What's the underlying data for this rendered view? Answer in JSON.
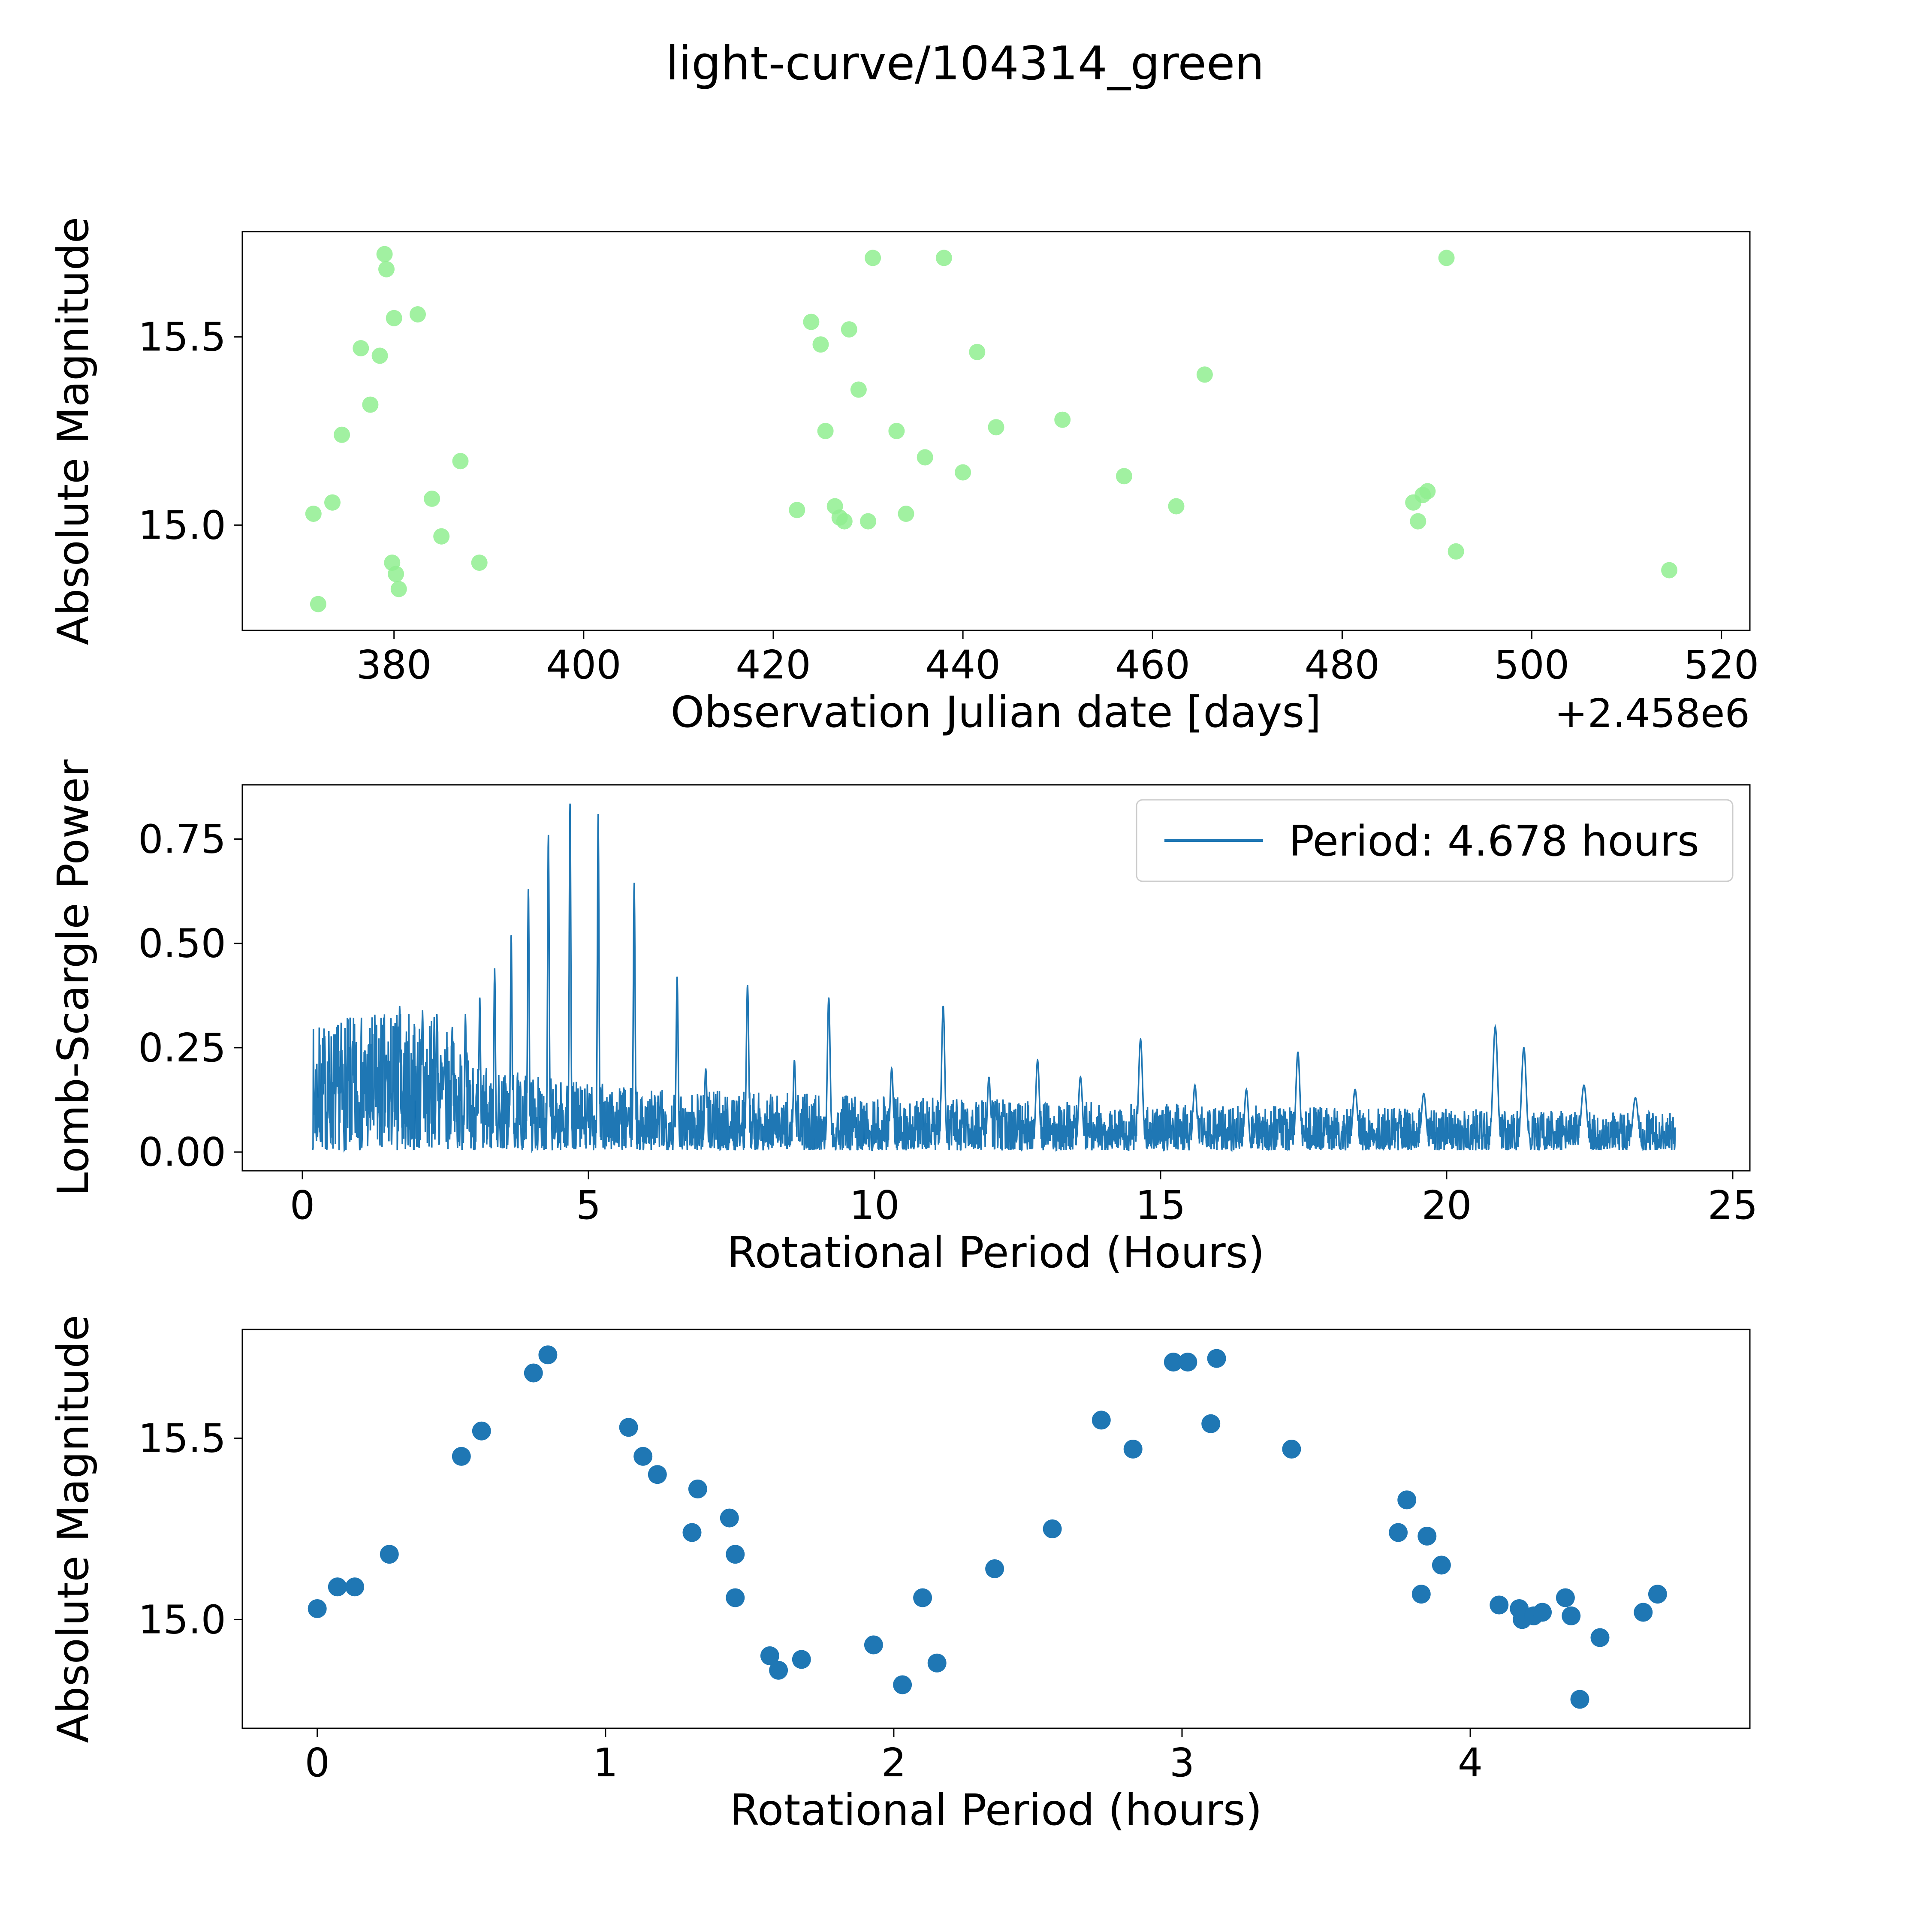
{
  "title": "light-curve/104314_green",
  "colors": {
    "scatter_green": "#90ee90",
    "line_blue": "#1f77b4",
    "scatter_blue": "#1f77b4",
    "axis": "#000000",
    "legend_edge": "#cccccc"
  },
  "chart_data": [
    {
      "type": "scatter",
      "xlabel": "Observation Julian date [days]",
      "x_offset_label": "+2.458e6",
      "ylabel": "Absolute Magnitude",
      "xlim": [
        364,
        523
      ],
      "ylim": [
        14.72,
        15.78
      ],
      "xticks": {
        "values": [
          380,
          400,
          420,
          440,
          460,
          480,
          500,
          520
        ],
        "labels": [
          "380",
          "400",
          "420",
          "440",
          "460",
          "480",
          "500",
          "520"
        ]
      },
      "yticks": {
        "values": [
          15.0,
          15.5
        ],
        "labels": [
          "15.0",
          "15.5"
        ]
      },
      "grid": false,
      "marker_color": "#90ee90",
      "marker_opacity": 0.85,
      "marker_radius": 19,
      "points": [
        [
          371.5,
          15.03
        ],
        [
          372.0,
          14.79
        ],
        [
          373.5,
          15.06
        ],
        [
          374.5,
          15.24
        ],
        [
          376.5,
          15.47
        ],
        [
          377.5,
          15.32
        ],
        [
          378.5,
          15.45
        ],
        [
          379.0,
          15.72
        ],
        [
          379.2,
          15.68
        ],
        [
          380.0,
          15.55
        ],
        [
          379.8,
          14.9
        ],
        [
          380.2,
          14.87
        ],
        [
          380.5,
          14.83
        ],
        [
          382.5,
          15.56
        ],
        [
          384.0,
          15.07
        ],
        [
          385.0,
          14.97
        ],
        [
          387.0,
          15.17
        ],
        [
          389.0,
          14.9
        ],
        [
          422.5,
          15.04
        ],
        [
          424.0,
          15.54
        ],
        [
          425.0,
          15.48
        ],
        [
          425.5,
          15.25
        ],
        [
          426.5,
          15.05
        ],
        [
          427.0,
          15.02
        ],
        [
          427.5,
          15.01
        ],
        [
          428.0,
          15.52
        ],
        [
          429.0,
          15.36
        ],
        [
          430.0,
          15.01
        ],
        [
          430.5,
          15.71
        ],
        [
          433.0,
          15.25
        ],
        [
          434.0,
          15.03
        ],
        [
          436.0,
          15.18
        ],
        [
          438.0,
          15.71
        ],
        [
          440.0,
          15.14
        ],
        [
          441.5,
          15.46
        ],
        [
          443.5,
          15.26
        ],
        [
          450.5,
          15.28
        ],
        [
          457.0,
          15.13
        ],
        [
          462.5,
          15.05
        ],
        [
          465.5,
          15.4
        ],
        [
          487.5,
          15.06
        ],
        [
          488.0,
          15.01
        ],
        [
          488.5,
          15.08
        ],
        [
          489.0,
          15.09
        ],
        [
          491.0,
          15.71
        ],
        [
          492.0,
          14.93
        ],
        [
          514.5,
          14.88
        ]
      ]
    },
    {
      "type": "line",
      "xlabel": "Rotational Period (Hours)",
      "ylabel": "Lomb-Scargle Power",
      "legend_label": "Period: 4.678 hours",
      "legend_position": "upper right",
      "xlim": [
        -1.05,
        25.3
      ],
      "ylim": [
        -0.045,
        0.88
      ],
      "xticks": {
        "values": [
          0,
          5,
          10,
          15,
          20,
          25
        ],
        "labels": [
          "0",
          "5",
          "10",
          "15",
          "20",
          "25"
        ]
      },
      "yticks": {
        "values": [
          0.0,
          0.25,
          0.5,
          0.75
        ],
        "labels": [
          "0.00",
          "0.25",
          "0.50",
          "0.75"
        ]
      },
      "grid": false,
      "line_color": "#1f77b4",
      "x_start": 0.18,
      "x_end": 24.0,
      "description": "Lomb-Scargle periodogram: dense low-power noise below ~2.6 h, sharp alias peaks rising to a maximum of ~0.835 at the best period 4.678 h, with decaying harmonic peaks at longer periods.",
      "noise_profile": [
        [
          0.18,
          0.3
        ],
        [
          0.8,
          0.32
        ],
        [
          1.6,
          0.34
        ],
        [
          2.3,
          0.32
        ],
        [
          2.7,
          0.26
        ],
        [
          3.2,
          0.2
        ],
        [
          4.5,
          0.17
        ],
        [
          6.0,
          0.15
        ],
        [
          8.0,
          0.14
        ],
        [
          10.0,
          0.13
        ],
        [
          13.0,
          0.12
        ],
        [
          16.0,
          0.11
        ],
        [
          20.0,
          0.1
        ],
        [
          24.0,
          0.09
        ]
      ],
      "peaks": [
        {
          "x": 1.7,
          "h": 0.35,
          "w": 0.02
        },
        {
          "x": 2.1,
          "h": 0.34,
          "w": 0.02
        },
        {
          "x": 2.35,
          "h": 0.33,
          "w": 0.02
        },
        {
          "x": 2.62,
          "h": 0.3,
          "w": 0.02
        },
        {
          "x": 2.85,
          "h": 0.33,
          "w": 0.02
        },
        {
          "x": 3.1,
          "h": 0.37,
          "w": 0.02
        },
        {
          "x": 3.36,
          "h": 0.44,
          "w": 0.02
        },
        {
          "x": 3.65,
          "h": 0.52,
          "w": 0.02
        },
        {
          "x": 3.95,
          "h": 0.63,
          "w": 0.02
        },
        {
          "x": 4.3,
          "h": 0.76,
          "w": 0.02
        },
        {
          "x": 4.678,
          "h": 0.835,
          "w": 0.02
        },
        {
          "x": 5.17,
          "h": 0.81,
          "w": 0.02
        },
        {
          "x": 5.8,
          "h": 0.645,
          "w": 0.022
        },
        {
          "x": 6.55,
          "h": 0.42,
          "w": 0.025
        },
        {
          "x": 7.05,
          "h": 0.2,
          "w": 0.03
        },
        {
          "x": 7.78,
          "h": 0.4,
          "w": 0.03
        },
        {
          "x": 8.6,
          "h": 0.22,
          "w": 0.03
        },
        {
          "x": 9.2,
          "h": 0.37,
          "w": 0.035
        },
        {
          "x": 10.3,
          "h": 0.2,
          "w": 0.04
        },
        {
          "x": 11.2,
          "h": 0.35,
          "w": 0.04
        },
        {
          "x": 12.0,
          "h": 0.18,
          "w": 0.04
        },
        {
          "x": 12.85,
          "h": 0.22,
          "w": 0.045
        },
        {
          "x": 13.6,
          "h": 0.18,
          "w": 0.05
        },
        {
          "x": 14.65,
          "h": 0.27,
          "w": 0.05
        },
        {
          "x": 15.6,
          "h": 0.16,
          "w": 0.05
        },
        {
          "x": 16.5,
          "h": 0.15,
          "w": 0.05
        },
        {
          "x": 17.4,
          "h": 0.24,
          "w": 0.05
        },
        {
          "x": 18.4,
          "h": 0.15,
          "w": 0.06
        },
        {
          "x": 19.6,
          "h": 0.14,
          "w": 0.06
        },
        {
          "x": 20.85,
          "h": 0.3,
          "w": 0.06
        },
        {
          "x": 21.35,
          "h": 0.25,
          "w": 0.06
        },
        {
          "x": 22.4,
          "h": 0.16,
          "w": 0.07
        },
        {
          "x": 23.3,
          "h": 0.13,
          "w": 0.07
        }
      ]
    },
    {
      "type": "scatter",
      "xlabel": "Rotational Period (hours)",
      "ylabel": "Absolute Magnitude",
      "xlim": [
        -0.26,
        4.97
      ],
      "ylim": [
        14.7,
        15.8
      ],
      "xticks": {
        "values": [
          0,
          1,
          2,
          3,
          4
        ],
        "labels": [
          "0",
          "1",
          "2",
          "3",
          "4"
        ]
      },
      "yticks": {
        "values": [
          15.0,
          15.5
        ],
        "labels": [
          "15.0",
          "15.5"
        ]
      },
      "grid": false,
      "marker_color": "#1f77b4",
      "marker_opacity": 1,
      "marker_radius": 22,
      "points": [
        [
          0.0,
          15.03
        ],
        [
          0.07,
          15.09
        ],
        [
          0.13,
          15.09
        ],
        [
          0.25,
          15.18
        ],
        [
          0.5,
          15.45
        ],
        [
          0.57,
          15.52
        ],
        [
          0.75,
          15.68
        ],
        [
          0.8,
          15.73
        ],
        [
          1.08,
          15.53
        ],
        [
          1.13,
          15.45
        ],
        [
          1.18,
          15.4
        ],
        [
          1.3,
          15.24
        ],
        [
          1.32,
          15.36
        ],
        [
          1.43,
          15.28
        ],
        [
          1.45,
          15.18
        ],
        [
          1.45,
          15.06
        ],
        [
          1.57,
          14.9
        ],
        [
          1.6,
          14.86
        ],
        [
          1.68,
          14.89
        ],
        [
          1.93,
          14.93
        ],
        [
          2.03,
          14.82
        ],
        [
          2.1,
          15.06
        ],
        [
          2.15,
          14.88
        ],
        [
          2.35,
          15.14
        ],
        [
          2.55,
          15.25
        ],
        [
          2.72,
          15.55
        ],
        [
          2.83,
          15.47
        ],
        [
          2.97,
          15.71
        ],
        [
          3.02,
          15.71
        ],
        [
          3.12,
          15.72
        ],
        [
          3.1,
          15.54
        ],
        [
          3.38,
          15.47
        ],
        [
          3.75,
          15.24
        ],
        [
          3.78,
          15.33
        ],
        [
          3.83,
          15.07
        ],
        [
          3.85,
          15.23
        ],
        [
          3.9,
          15.15
        ],
        [
          4.1,
          15.04
        ],
        [
          4.17,
          15.03
        ],
        [
          4.18,
          15.0
        ],
        [
          4.22,
          15.01
        ],
        [
          4.25,
          15.02
        ],
        [
          4.33,
          15.06
        ],
        [
          4.35,
          15.01
        ],
        [
          4.38,
          14.78
        ],
        [
          4.45,
          14.95
        ],
        [
          4.6,
          15.02
        ],
        [
          4.65,
          15.07
        ]
      ]
    }
  ]
}
